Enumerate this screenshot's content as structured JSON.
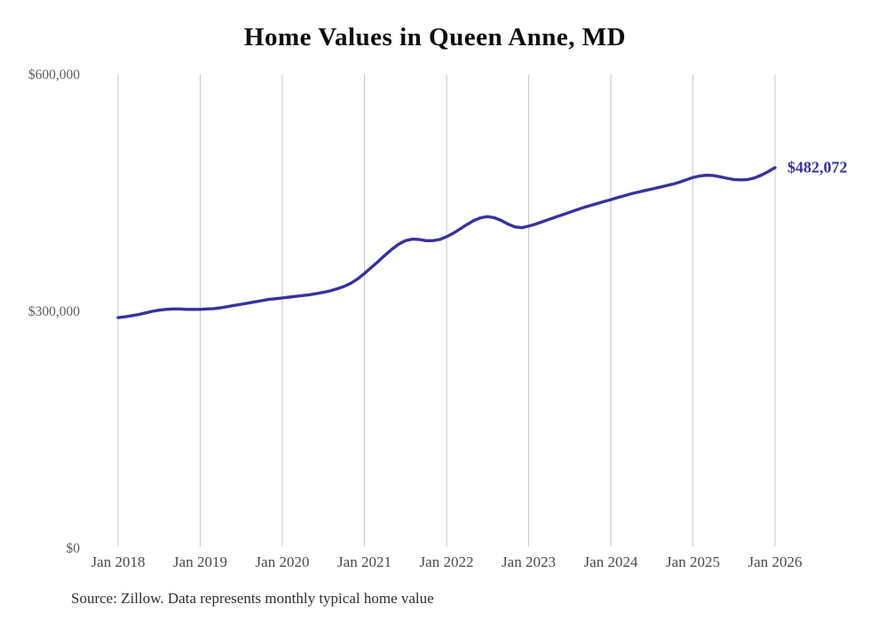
{
  "chart_data": {
    "type": "line",
    "title": "Home Values in Queen Anne, MD",
    "xlabel": "",
    "ylabel": "",
    "x_interval": "monthly",
    "x_start": "Jan 2018",
    "x_end": "Jan 2026",
    "x_tick_labels": [
      "Jan 2018",
      "Jan 2019",
      "Jan 2020",
      "Jan 2021",
      "Jan 2022",
      "Jan 2023",
      "Jan 2024",
      "Jan 2025",
      "Jan 2026"
    ],
    "y_ticks": [
      {
        "label": "$0",
        "value": 0
      },
      {
        "label": "$300,000",
        "value": 300000
      },
      {
        "label": "$600,000",
        "value": 600000
      }
    ],
    "ylim": [
      0,
      600000
    ],
    "grid": "vertical-only",
    "legend": "none",
    "series": [
      {
        "name": "Monthly typical home value",
        "values": [
          292000,
          293000,
          294500,
          296000,
          298000,
          300000,
          301500,
          302500,
          303000,
          303000,
          302500,
          302500,
          302500,
          303000,
          303500,
          304500,
          306000,
          307500,
          309000,
          310500,
          312000,
          313500,
          315000,
          316000,
          317000,
          318000,
          319000,
          320000,
          321000,
          322500,
          324000,
          326000,
          328500,
          331500,
          335500,
          341000,
          348000,
          355500,
          363000,
          371000,
          378500,
          385000,
          389500,
          391500,
          391000,
          389500,
          389500,
          391000,
          394500,
          399000,
          404500,
          410000,
          415000,
          418500,
          420000,
          418500,
          415000,
          410500,
          407000,
          406000,
          408000,
          410500,
          413500,
          416500,
          419500,
          422500,
          425500,
          428500,
          431500,
          434000,
          436500,
          439000,
          441500,
          444000,
          446500,
          449000,
          451000,
          453000,
          455000,
          457000,
          459000,
          461000,
          463500,
          466500,
          469500,
          471500,
          472500,
          472000,
          470500,
          468500,
          467000,
          466500,
          467000,
          469000,
          472500,
          477000,
          482072
        ]
      }
    ],
    "annotation": {
      "text": "$482,072",
      "value": 482072
    }
  },
  "style": {
    "line_color": "#3a319b",
    "grid_color": "#c9c9c9",
    "title_color": "#0b0b0b",
    "background": "#ffffff"
  },
  "footer": {
    "source_note": "Source: Zillow. Data represents monthly typical home value"
  }
}
